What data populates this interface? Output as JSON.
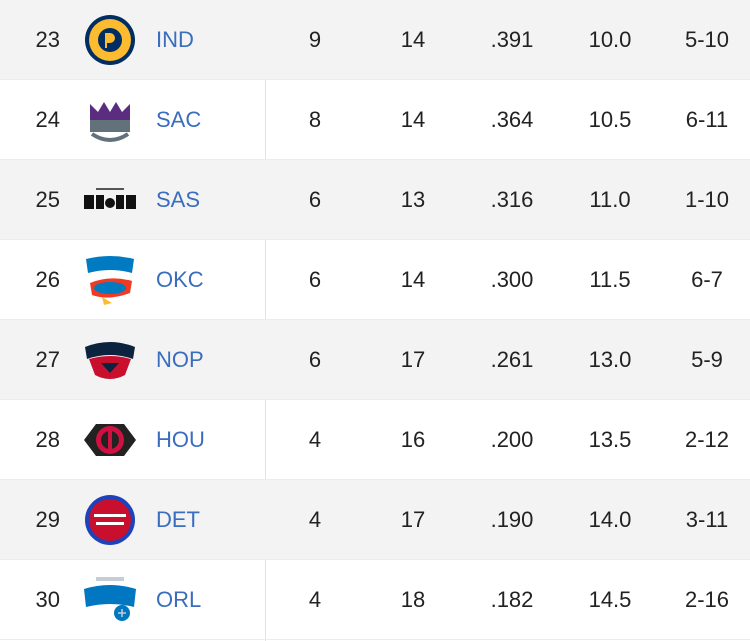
{
  "standings": {
    "rows": [
      {
        "rank": "23",
        "team": "IND",
        "w": "9",
        "l": "14",
        "pct": ".391",
        "gb": "10.0",
        "last10": "5-10",
        "logo_icon": "pacers-logo-icon",
        "logo_colors": [
          "#fdbb30",
          "#002d62"
        ]
      },
      {
        "rank": "24",
        "team": "SAC",
        "w": "8",
        "l": "14",
        "pct": ".364",
        "gb": "10.5",
        "last10": "6-11",
        "logo_icon": "kings-logo-icon",
        "logo_colors": [
          "#5a2d81",
          "#63727a"
        ]
      },
      {
        "rank": "25",
        "team": "SAS",
        "w": "6",
        "l": "13",
        "pct": ".316",
        "gb": "11.0",
        "last10": "1-10",
        "logo_icon": "spurs-logo-icon",
        "logo_colors": [
          "#000000",
          "#c4ced4"
        ]
      },
      {
        "rank": "26",
        "team": "OKC",
        "w": "6",
        "l": "14",
        "pct": ".300",
        "gb": "11.5",
        "last10": "6-7",
        "logo_icon": "thunder-logo-icon",
        "logo_colors": [
          "#007ac1",
          "#ef3b24"
        ]
      },
      {
        "rank": "27",
        "team": "NOP",
        "w": "6",
        "l": "17",
        "pct": ".261",
        "gb": "13.0",
        "last10": "5-9",
        "logo_icon": "pelicans-logo-icon",
        "logo_colors": [
          "#0c2340",
          "#c8102e"
        ]
      },
      {
        "rank": "28",
        "team": "HOU",
        "w": "4",
        "l": "16",
        "pct": ".200",
        "gb": "13.5",
        "last10": "2-12",
        "logo_icon": "rockets-logo-icon",
        "logo_colors": [
          "#ce1141",
          "#222222"
        ]
      },
      {
        "rank": "29",
        "team": "DET",
        "w": "4",
        "l": "17",
        "pct": ".190",
        "gb": "14.0",
        "last10": "3-11",
        "logo_icon": "pistons-logo-icon",
        "logo_colors": [
          "#c8102e",
          "#1d42ba"
        ]
      },
      {
        "rank": "30",
        "team": "ORL",
        "w": "4",
        "l": "18",
        "pct": ".182",
        "gb": "14.5",
        "last10": "2-16",
        "logo_icon": "magic-logo-icon",
        "logo_colors": [
          "#0077c0",
          "#c4ced4"
        ]
      }
    ]
  },
  "colors": {
    "link": "#3a6dbd",
    "shade": "#f3f3f3",
    "text": "#222222"
  }
}
